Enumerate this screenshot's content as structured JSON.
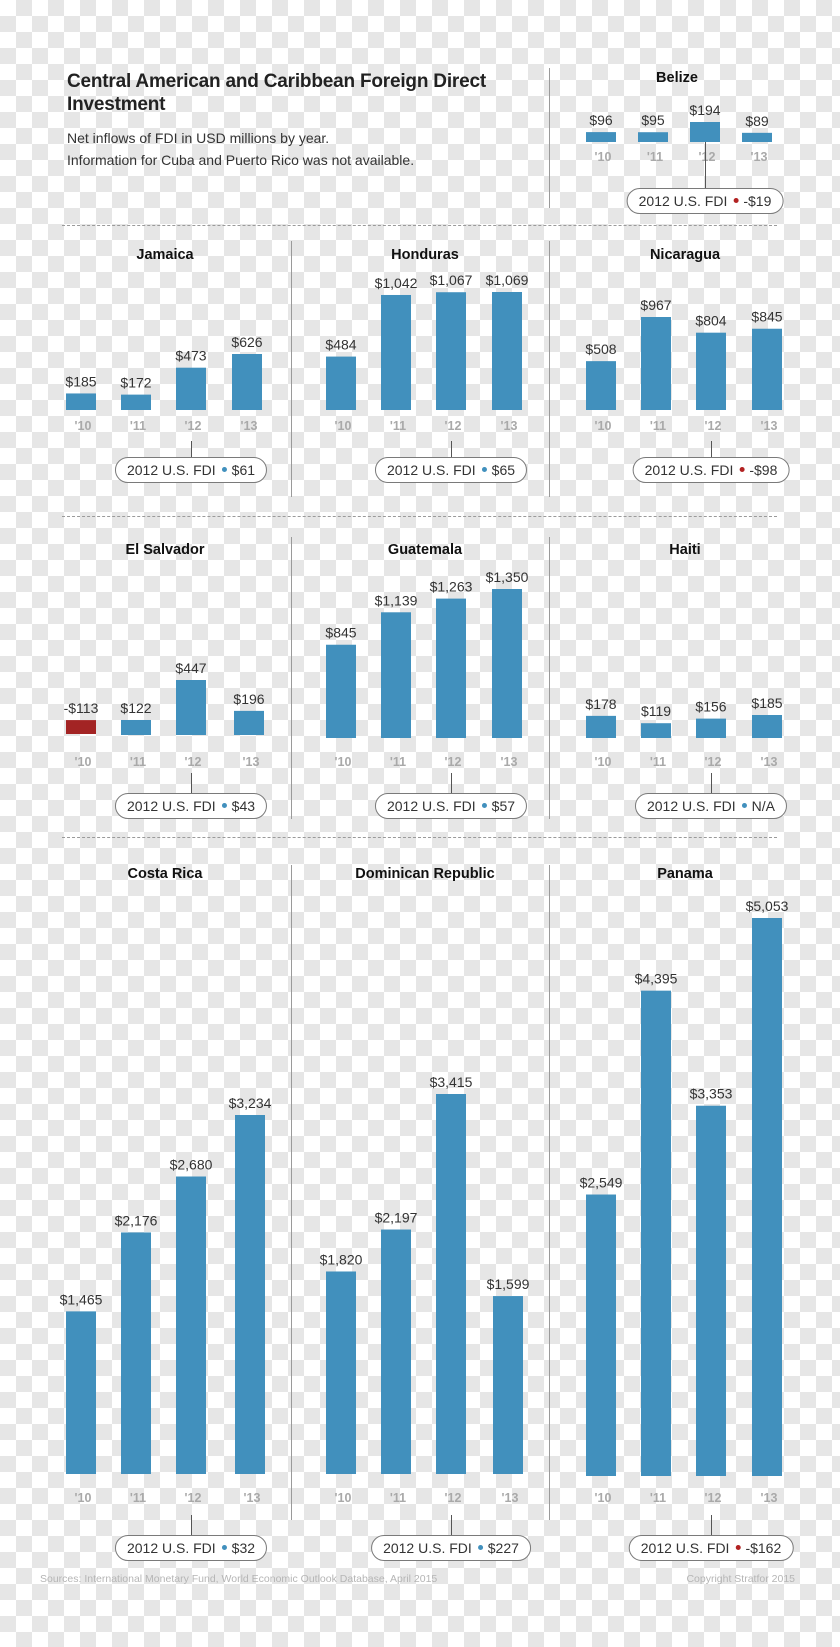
{
  "title": "Central American and Caribbean Foreign Direct Investment",
  "subtitle_lines": [
    "Net inflows of FDI in USD millions by year.",
    "Information for Cuba and Puerto Rico was not available."
  ],
  "colors": {
    "positive_bar": "#4190bd",
    "negative_bar": "#a32424",
    "positive_dot": "#4190bd",
    "negative_dot": "#b22222"
  },
  "chart_data": [
    {
      "type": "bar",
      "title": "Belize",
      "categories": [
        "'10",
        "'11",
        "'12",
        "'13"
      ],
      "values": [
        96,
        95,
        194,
        89
      ],
      "value_labels": [
        "$96",
        "$95",
        "$194",
        "$89"
      ],
      "us_fdi_2012": "2012 U.S. FDI",
      "us_fdi_value": "-$19",
      "us_fdi_sign": "negative"
    },
    {
      "type": "bar",
      "title": "Jamaica",
      "categories": [
        "'10",
        "'11",
        "'12",
        "'13"
      ],
      "values": [
        185,
        172,
        473,
        626
      ],
      "value_labels": [
        "$185",
        "$172",
        "$473",
        "$626"
      ],
      "us_fdi_2012": "2012 U.S. FDI",
      "us_fdi_value": "$61",
      "us_fdi_sign": "positive"
    },
    {
      "type": "bar",
      "title": "Honduras",
      "categories": [
        "'10",
        "'11",
        "'12",
        "'13"
      ],
      "values": [
        484,
        1042,
        1067,
        1069
      ],
      "value_labels": [
        "$484",
        "$1,042",
        "$1,067",
        "$1,069"
      ],
      "us_fdi_2012": "2012 U.S. FDI",
      "us_fdi_value": "$65",
      "us_fdi_sign": "positive"
    },
    {
      "type": "bar",
      "title": "Nicaragua",
      "categories": [
        "'10",
        "'11",
        "'12",
        "'13"
      ],
      "values": [
        508,
        967,
        804,
        845
      ],
      "value_labels": [
        "$508",
        "$967",
        "$804",
        "$845"
      ],
      "us_fdi_2012": "2012 U.S. FDI",
      "us_fdi_value": "-$98",
      "us_fdi_sign": "negative"
    },
    {
      "type": "bar",
      "title": "El Salvador",
      "categories": [
        "'10",
        "'11",
        "'12",
        "'13"
      ],
      "values": [
        -113,
        122,
        447,
        196
      ],
      "value_labels": [
        "-$113",
        "$122",
        "$447",
        "$196"
      ],
      "us_fdi_2012": "2012 U.S. FDI",
      "us_fdi_value": "$43",
      "us_fdi_sign": "positive"
    },
    {
      "type": "bar",
      "title": "Guatemala",
      "categories": [
        "'10",
        "'11",
        "'12",
        "'13"
      ],
      "values": [
        845,
        1139,
        1263,
        1350
      ],
      "value_labels": [
        "$845",
        "$1,139",
        "$1,263",
        "$1,350"
      ],
      "us_fdi_2012": "2012 U.S. FDI",
      "us_fdi_value": "$57",
      "us_fdi_sign": "positive"
    },
    {
      "type": "bar",
      "title": "Haiti",
      "categories": [
        "'10",
        "'11",
        "'12",
        "'13"
      ],
      "values": [
        178,
        119,
        156,
        185
      ],
      "value_labels": [
        "$178",
        "$119",
        "$156",
        "$185"
      ],
      "us_fdi_2012": "2012 U.S. FDI",
      "us_fdi_value": "N/A",
      "us_fdi_sign": "positive"
    },
    {
      "type": "bar",
      "title": "Costa Rica",
      "categories": [
        "'10",
        "'11",
        "'12",
        "'13"
      ],
      "values": [
        1465,
        2176,
        2680,
        3234
      ],
      "value_labels": [
        "$1,465",
        "$2,176",
        "$2,680",
        "$3,234"
      ],
      "us_fdi_2012": "2012 U.S. FDI",
      "us_fdi_value": "$32",
      "us_fdi_sign": "positive"
    },
    {
      "type": "bar",
      "title": "Dominican Republic",
      "categories": [
        "'10",
        "'11",
        "'12",
        "'13"
      ],
      "values": [
        1820,
        2197,
        3415,
        1599
      ],
      "value_labels": [
        "$1,820",
        "$2,197",
        "$3,415",
        "$1,599"
      ],
      "us_fdi_2012": "2012 U.S. FDI",
      "us_fdi_value": "$227",
      "us_fdi_sign": "positive"
    },
    {
      "type": "bar",
      "title": "Panama",
      "categories": [
        "'10",
        "'11",
        "'12",
        "'13"
      ],
      "values": [
        2549,
        4395,
        3353,
        5053
      ],
      "value_labels": [
        "$2,549",
        "$4,395",
        "$3,353",
        "$5,053"
      ],
      "us_fdi_2012": "2012 U.S. FDI",
      "us_fdi_value": "-$162",
      "us_fdi_sign": "negative"
    }
  ],
  "footer": {
    "source": "Sources: International Monetary Fund, World Economic Outlook Database, April 2015",
    "copyright": "Copyright Stratfor 2015"
  }
}
